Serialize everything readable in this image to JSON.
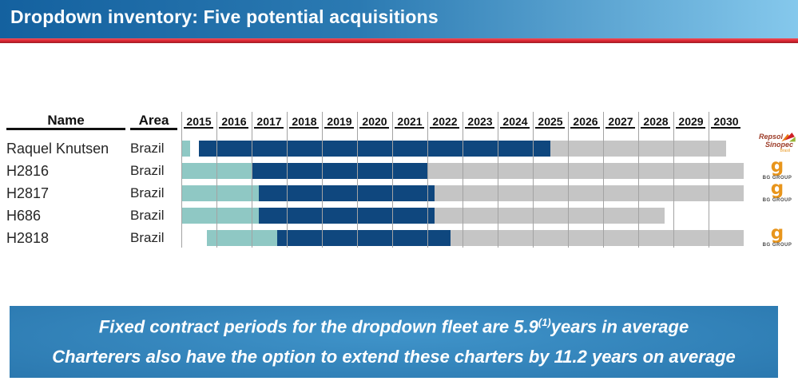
{
  "header": {
    "title": "Dropdown inventory: Five potential acquisitions"
  },
  "table": {
    "name_header": "Name",
    "area_header": "Area"
  },
  "colors": {
    "title_gradient_left": "#14619f",
    "title_gradient_right": "#85c8ec",
    "red_divider": "#d8232f",
    "pre_teal": "#8fc8c4",
    "fixed_navy": "#0f477e",
    "option_gray": "#c5c5c5",
    "banner_blue": "#2a77ae",
    "bg_group_orange": "#e8951c",
    "repsol_red": "#9c3b27"
  },
  "chart_data": {
    "type": "bar",
    "subtype": "gantt-timeline",
    "orientation": "horizontal",
    "x_range": [
      2015,
      2031
    ],
    "x_ticks": [
      "2015",
      "2016",
      "2017",
      "2018",
      "2019",
      "2020",
      "2021",
      "2022",
      "2023",
      "2024",
      "2025",
      "2026",
      "2027",
      "2028",
      "2029",
      "2030"
    ],
    "grid": "vertical",
    "legend": "none",
    "segment_kinds": {
      "pre": "construction / pre-charter period (teal)",
      "fixed": "fixed contract period (navy)",
      "option": "charterer option period (gray)"
    },
    "categories": [
      "Raquel Knutsen",
      "H2816",
      "H2817",
      "H686",
      "H2818"
    ],
    "rows": [
      {
        "name": "Raquel Knutsen",
        "area": "Brazil",
        "charterer": "Repsol Sinopec",
        "segments": [
          {
            "kind": "pre",
            "start": 2015.0,
            "end": 2015.25
          },
          {
            "kind": "fixed",
            "start": 2015.5,
            "end": 2025.5
          },
          {
            "kind": "option",
            "start": 2025.5,
            "end": 2030.5
          }
        ]
      },
      {
        "name": "H2816",
        "area": "Brazil",
        "charterer": "BG GROUP",
        "segments": [
          {
            "kind": "pre",
            "start": 2015.0,
            "end": 2017.0
          },
          {
            "kind": "fixed",
            "start": 2017.0,
            "end": 2022.0
          },
          {
            "kind": "option",
            "start": 2022.0,
            "end": 2031.0
          }
        ]
      },
      {
        "name": "H2817",
        "area": "Brazil",
        "charterer": "BG GROUP",
        "segments": [
          {
            "kind": "pre",
            "start": 2015.0,
            "end": 2017.2
          },
          {
            "kind": "fixed",
            "start": 2017.2,
            "end": 2022.2
          },
          {
            "kind": "option",
            "start": 2022.2,
            "end": 2031.0
          }
        ]
      },
      {
        "name": "H686",
        "area": "Brazil",
        "charterer": "",
        "segments": [
          {
            "kind": "pre",
            "start": 2015.0,
            "end": 2017.2
          },
          {
            "kind": "fixed",
            "start": 2017.2,
            "end": 2022.2
          },
          {
            "kind": "option",
            "start": 2022.2,
            "end": 2028.75
          }
        ]
      },
      {
        "name": "H2818",
        "area": "Brazil",
        "charterer": "BG GROUP",
        "segments": [
          {
            "kind": "pre",
            "start": 2015.72,
            "end": 2017.72
          },
          {
            "kind": "fixed",
            "start": 2017.72,
            "end": 2022.65
          },
          {
            "kind": "option",
            "start": 2022.65,
            "end": 2031.0
          }
        ]
      }
    ]
  },
  "logos": {
    "repsol": {
      "line1": "Repsol",
      "line2": "Sinopec",
      "line3": "Brasil"
    },
    "bg": {
      "glyph": "g",
      "label": "BG GROUP"
    },
    "items": [
      {
        "row": 0,
        "type": "repsol-sinopec"
      },
      {
        "row": 1,
        "type": "bg-group"
      },
      {
        "row": 2,
        "type": "bg-group"
      },
      {
        "row": 4,
        "type": "bg-group"
      }
    ]
  },
  "footer": {
    "line1_prefix": "Fixed contract periods for the dropdown fleet are 5.9",
    "line1_sup": "(1)",
    "line1_suffix": "years in average",
    "line2": "Charterers also have the option to extend these charters by 11.2 years on average"
  }
}
